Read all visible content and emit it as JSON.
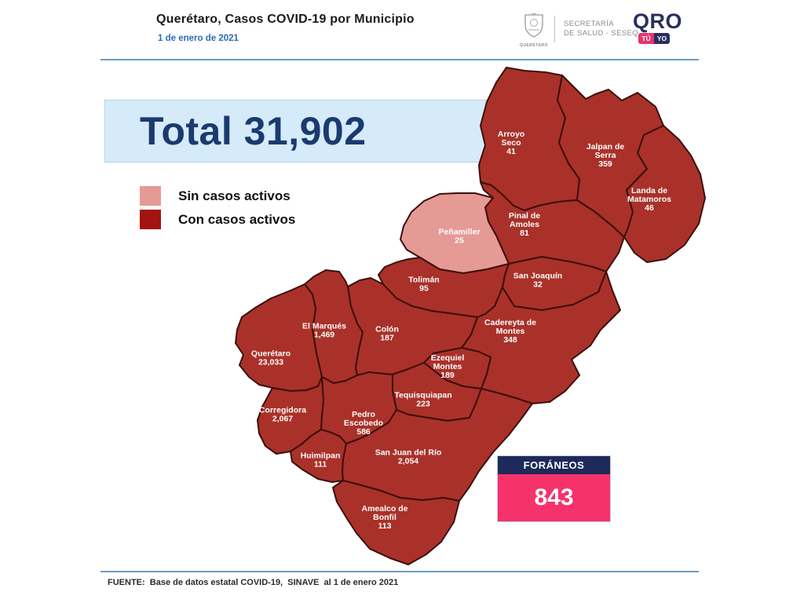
{
  "header": {
    "title": "Querétaro, Casos COVID-19 por Municipio",
    "date": "1 de enero de 2021",
    "crest_caption": "QUERÉTARO",
    "secretariat_line1": "SECRETARÍA",
    "secretariat_line2": "DE SALUD - SESEQ",
    "qro_text": "QRO",
    "qro_badge_tu": "TÚ",
    "qro_badge_yo": "YO"
  },
  "total": {
    "text": "Total 31,902"
  },
  "legend": [
    {
      "label": "Sin casos activos",
      "color": "#e59a95"
    },
    {
      "label": "Con casos activos",
      "color": "#a31310"
    }
  ],
  "map_style": {
    "fill_active": "#a93129",
    "fill_no_active": "#e59a95",
    "border": "#3c0f0c"
  },
  "foraneos": {
    "title": "FORÁNEOS",
    "value": "843"
  },
  "footer": {
    "source": "FUENTE:  Base de datos estatal COVID-19,  SINAVE  al 1 de enero 2021"
  },
  "chart_data": {
    "type": "choropleth_map",
    "title": "Querétaro, Casos COVID-19 por Municipio",
    "date": "1 de enero de 2021",
    "total_cases": 31902,
    "foraneos_cases": 843,
    "legend": [
      "Sin casos activos",
      "Con casos activos"
    ],
    "municipalities": [
      {
        "id": "arroyo-seco",
        "name": "Arroyo Seco",
        "name_lines": [
          "Arroyo",
          "Seco"
        ],
        "cases": 41,
        "cases_label": "41",
        "active_cases": true
      },
      {
        "id": "jalpan-de-serra",
        "name": "Jalpan de Serra",
        "name_lines": [
          "Jalpan de",
          "Serra"
        ],
        "cases": 359,
        "cases_label": "359",
        "active_cases": true
      },
      {
        "id": "landa-de-matamoros",
        "name": "Landa de Matamoros",
        "name_lines": [
          "Landa de",
          "Matamoros"
        ],
        "cases": 46,
        "cases_label": "46",
        "active_cases": true
      },
      {
        "id": "pinal-de-amoles",
        "name": "Pinal de Amoles",
        "name_lines": [
          "Pinal de",
          "Amoles"
        ],
        "cases": 81,
        "cases_label": "81",
        "active_cases": true
      },
      {
        "id": "penamiller",
        "name": "Peñamiller",
        "name_lines": [
          "Peñamiller"
        ],
        "cases": 25,
        "cases_label": "25",
        "active_cases": false
      },
      {
        "id": "san-joaquin",
        "name": "San Joaquín",
        "name_lines": [
          "San Joaquín"
        ],
        "cases": 32,
        "cases_label": "32",
        "active_cases": true
      },
      {
        "id": "toliman",
        "name": "Tolimán",
        "name_lines": [
          "Tolimán"
        ],
        "cases": 95,
        "cases_label": "95",
        "active_cases": true
      },
      {
        "id": "cadereyta-de-montes",
        "name": "Cadereyta de Montes",
        "name_lines": [
          "Cadereyta de",
          "Montes"
        ],
        "cases": 348,
        "cases_label": "348",
        "active_cases": true
      },
      {
        "id": "el-marques",
        "name": "El Marqués",
        "name_lines": [
          "El  Marqués"
        ],
        "cases": 1469,
        "cases_label": "1,469",
        "active_cases": true
      },
      {
        "id": "colon",
        "name": "Colón",
        "name_lines": [
          "Colón"
        ],
        "cases": 187,
        "cases_label": "187",
        "active_cases": true
      },
      {
        "id": "queretaro",
        "name": "Querétaro",
        "name_lines": [
          "Querétaro"
        ],
        "cases": 23033,
        "cases_label": "23,033",
        "active_cases": true
      },
      {
        "id": "ezequiel-montes",
        "name": "Ezequiel Montes",
        "name_lines": [
          "Ezequiel",
          "Montes"
        ],
        "cases": 189,
        "cases_label": "189",
        "active_cases": true
      },
      {
        "id": "tequisquiapan",
        "name": "Tequisquiapan",
        "name_lines": [
          "Tequisquiapan"
        ],
        "cases": 223,
        "cases_label": "223",
        "active_cases": true
      },
      {
        "id": "corregidora",
        "name": "Corregidora",
        "name_lines": [
          "Corregidora"
        ],
        "cases": 2067,
        "cases_label": "2,067",
        "active_cases": true
      },
      {
        "id": "pedro-escobedo",
        "name": "Pedro Escobedo",
        "name_lines": [
          "Pedro",
          "Escobedo"
        ],
        "cases": 586,
        "cases_label": "586",
        "active_cases": true
      },
      {
        "id": "huimilpan",
        "name": "Huimilpan",
        "name_lines": [
          "Huimilpan"
        ],
        "cases": 111,
        "cases_label": "111",
        "active_cases": true
      },
      {
        "id": "san-juan-del-rio",
        "name": "San Juan del Río",
        "name_lines": [
          "San Juan del Río"
        ],
        "cases": 2054,
        "cases_label": "2,054",
        "active_cases": true
      },
      {
        "id": "amealco-de-bonfil",
        "name": "Amealco de Bonfil",
        "name_lines": [
          "Amealco de",
          "Bonfil"
        ],
        "cases": 113,
        "cases_label": "113",
        "active_cases": true
      }
    ]
  }
}
